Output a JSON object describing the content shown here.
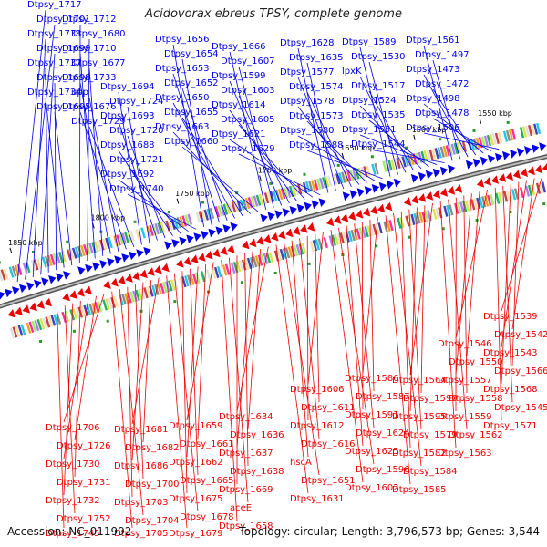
{
  "title": "Acidovorax ebreus TPSY, complete genome",
  "footer": {
    "accession": "Accession: NC_011992",
    "stats": "Topology: circular; Length: 3,796,573 bp; Genes: 3,544"
  },
  "colors": {
    "top": "#0000ee",
    "bottom": "#ee0000",
    "backbone": "#888888"
  },
  "ticks": [
    "1850 kbp",
    "1800 kbp",
    "1750 kbp",
    "1700 kbp",
    "1650 kbp",
    "1600 kbp",
    "1550 kbp"
  ],
  "top_labels": [
    "Dtpsy_1717",
    "Dtpsy_1701",
    "Dtpsy_1738",
    "Dtpsy_1699",
    "Dtpsy_1737",
    "Dtpsy_1698",
    "Dtpsy_1734",
    "Dtpsy_1695",
    "Dtpsy_1712",
    "Dtpsy_1680",
    "Dtpsy_1710",
    "Dtpsy_1677",
    "Dtpsy_1733",
    "upp",
    "Dtpsy_1676",
    "Dtpsy_1729",
    "Dtpsy_1694",
    "Dtpsy_1724",
    "Dtpsy_1693",
    "Dtpsy_1720",
    "Dtpsy_1688",
    "Dtpsy_1721",
    "Dtpsy_1692",
    "Dtpsy_1740",
    "Dtpsy_1656",
    "Dtpsy_1654",
    "Dtpsy_1653",
    "Dtpsy_1652",
    "Dtpsy_1650",
    "Dtpsy_1655",
    "Dtpsy_1663",
    "Dtpsy_1660",
    "Dtpsy_1666",
    "Dtpsy_1607",
    "Dtpsy_1599",
    "Dtpsy_1603",
    "Dtpsy_1614",
    "Dtpsy_1605",
    "Dtpsy_1621",
    "Dtpsy_1629",
    "Dtpsy_1628",
    "Dtpsy_1635",
    "Dtpsy_1577",
    "Dtpsy_1574",
    "Dtpsy_1578",
    "Dtpsy_1573",
    "Dtpsy_1580",
    "Dtpsy_1588",
    "Dtpsy_1589",
    "Dtpsy_1530",
    "lpxK",
    "Dtpsy_1517",
    "Dtpsy_1524",
    "Dtpsy_1535",
    "Dtpsy_1531",
    "Dtpsy_1544",
    "Dtpsy_1561",
    "Dtpsy_1497",
    "Dtpsy_1473",
    "Dtpsy_1472",
    "Dtpsy_1498",
    "Dtpsy_1478",
    "Dtpsy_1506"
  ],
  "bottom_labels": [
    "Dtpsy_1539",
    "Dtpsy_1542",
    "Dtpsy_1543",
    "Dtpsy_1566",
    "Dtpsy_1568",
    "Dtpsy_1545",
    "Dtpsy_1571",
    "Dtpsy_1546",
    "Dtpsy_1550",
    "Dtpsy_1557",
    "Dtpsy_1558",
    "Dtpsy_1559",
    "Dtpsy_1562",
    "Dtpsy_1563",
    "Dtpsy_1564",
    "Dtpsy_1590",
    "Dtpsy_1595",
    "Dtpsy_1579",
    "Dtpsy_1582",
    "Dtpsy_1584",
    "Dtpsy_1585",
    "Dtpsy_1586",
    "Dtpsy_1587",
    "Dtpsy_1591",
    "Dtpsy_1624",
    "Dtpsy_1625",
    "Dtpsy_1596",
    "Dtpsy_1602",
    "Dtpsy_1606",
    "Dtpsy_1611",
    "Dtpsy_1612",
    "Dtpsy_1616",
    "hscA",
    "Dtpsy_1651",
    "Dtpsy_1631",
    "Dtpsy_1634",
    "Dtpsy_1636",
    "Dtpsy_1637",
    "Dtpsy_1638",
    "Dtpsy_1669",
    "aceE",
    "Dtpsy_1658",
    "Dtpsy_1659",
    "Dtpsy_1661",
    "Dtpsy_1662",
    "Dtpsy_1665",
    "Dtpsy_1675",
    "Dtpsy_1678",
    "Dtpsy_1679",
    "Dtpsy_1681",
    "Dtpsy_1682",
    "Dtpsy_1686",
    "Dtpsy_1700",
    "Dtpsy_1703",
    "Dtpsy_1704",
    "Dtpsy_1705",
    "Dtpsy_1706",
    "Dtpsy_1726",
    "Dtpsy_1730",
    "Dtpsy_1731",
    "Dtpsy_1732",
    "Dtpsy_1752",
    "Dtpsy_1745"
  ]
}
